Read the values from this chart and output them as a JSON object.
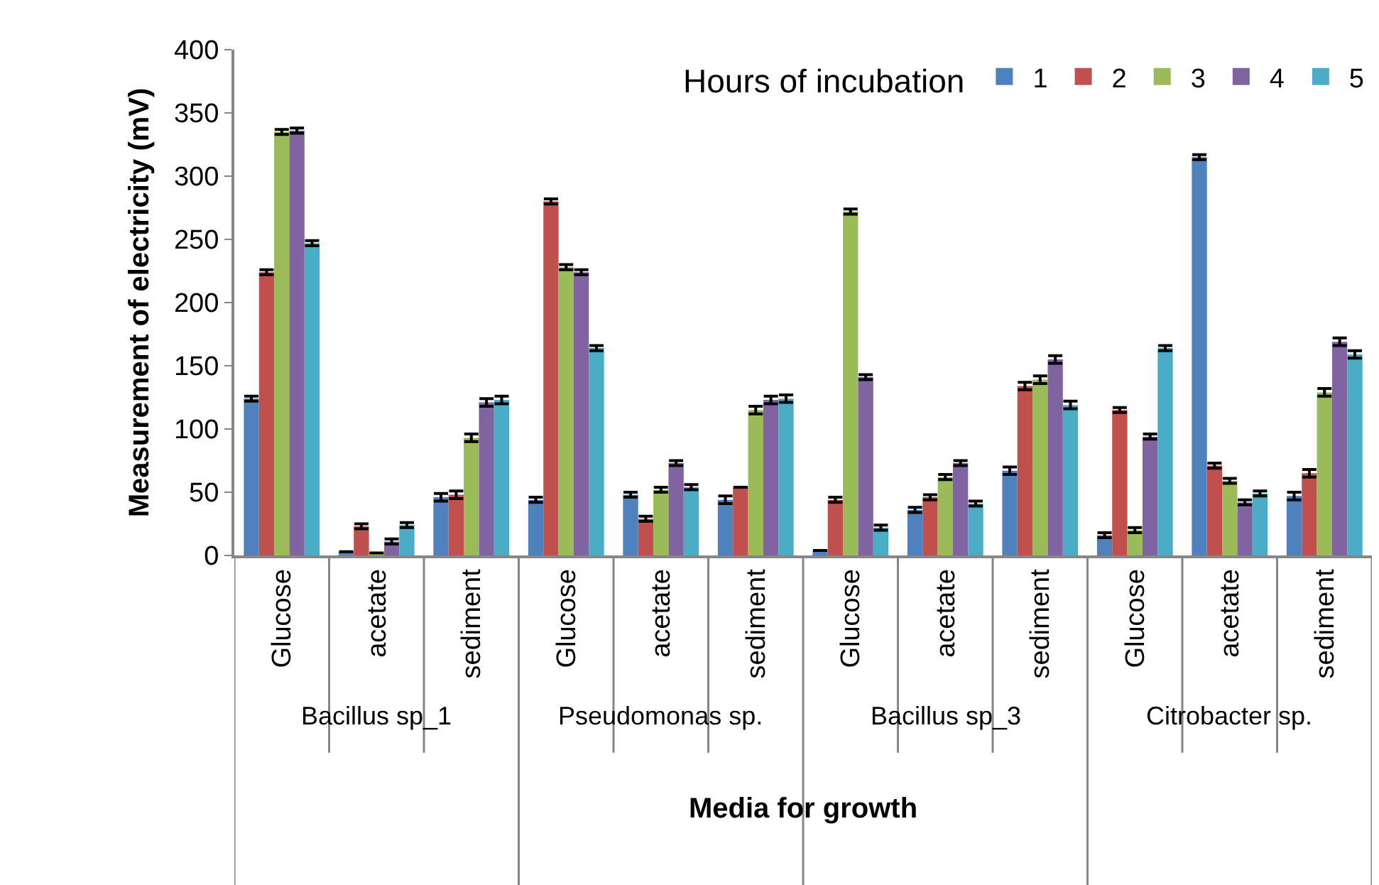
{
  "chart_data": {
    "type": "bar",
    "xlabel": "Media for growth",
    "ylabel": "Measurement of electricity (mV)",
    "legend_title": "Hours of incubation",
    "categories": [
      "Glucose",
      "acetate",
      "sediment",
      "Glucose",
      "acetate",
      "sediment",
      "Glucose",
      "acetate",
      "sediment",
      "Glucose",
      "acetate",
      "sediment"
    ],
    "annotations": [
      "Bacillus sp_1",
      "Pseudomonas sp.",
      "Bacillus sp_3",
      "Citrobacter sp."
    ],
    "series": [
      {
        "name": "1",
        "color": "#4f81bd",
        "values": [
          124,
          3,
          46,
          44,
          48,
          44,
          4,
          36,
          67,
          16,
          315,
          47
        ],
        "errors": [
          2,
          null,
          3,
          2,
          2,
          3,
          null,
          2,
          3,
          2,
          2,
          3
        ]
      },
      {
        "name": "2",
        "color": "#c0504d",
        "values": [
          224,
          23,
          48,
          280,
          29,
          54,
          44,
          46,
          134,
          115,
          71,
          65
        ],
        "errors": [
          2,
          2,
          3,
          2,
          2,
          null,
          2,
          2,
          3,
          2,
          2,
          3
        ]
      },
      {
        "name": "3",
        "color": "#9bbb59",
        "values": [
          335,
          2,
          93,
          228,
          52,
          115,
          272,
          62,
          139,
          20,
          59,
          129
        ],
        "errors": [
          2,
          null,
          3,
          2,
          2,
          3,
          2,
          2,
          3,
          2,
          2,
          3
        ]
      },
      {
        "name": "4",
        "color": "#8064a2",
        "values": [
          336,
          11,
          121,
          224,
          73,
          123,
          141,
          73,
          155,
          94,
          42,
          169
        ],
        "errors": [
          2,
          2,
          3,
          2,
          2,
          3,
          2,
          2,
          3,
          2,
          2,
          3
        ]
      },
      {
        "name": "5",
        "color": "#4bacc6",
        "values": [
          247,
          24,
          123,
          164,
          54,
          124,
          22,
          41,
          119,
          164,
          49,
          159
        ],
        "errors": [
          2,
          2,
          3,
          2,
          2,
          3,
          2,
          2,
          3,
          2,
          2,
          3
        ]
      }
    ],
    "ylim": [
      0,
      400
    ],
    "yticks": [
      0,
      50,
      100,
      150,
      200,
      250,
      300,
      350,
      400
    ],
    "legend": "top right"
  }
}
